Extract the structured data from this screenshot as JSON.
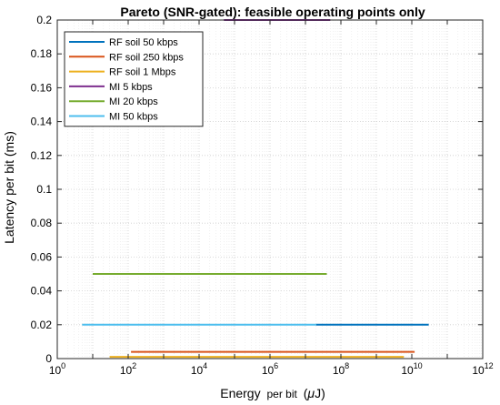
{
  "chart_data": {
    "type": "line",
    "title": "Pareto (SNR-gated): feasible operating points only",
    "xlabel_main": "Energy",
    "xlabel_sub": "per bit",
    "xlabel_unit_open": "(",
    "xlabel_unit_mu": "μ",
    "xlabel_unit_rest": "J)",
    "ylabel": "Latency per bit (ms)",
    "x_scale": "log",
    "xlim": [
      1,
      1000000000000
    ],
    "ylim": [
      0,
      0.2
    ],
    "grid": true,
    "legend_position": "top-left",
    "x_ticks": [
      {
        "base": "10",
        "exp": "0",
        "value": 1
      },
      {
        "base": "10",
        "exp": "2",
        "value": 100
      },
      {
        "base": "10",
        "exp": "4",
        "value": 10000
      },
      {
        "base": "10",
        "exp": "6",
        "value": 1000000
      },
      {
        "base": "10",
        "exp": "8",
        "value": 100000000
      },
      {
        "base": "10",
        "exp": "10",
        "value": 10000000000
      },
      {
        "base": "10",
        "exp": "12",
        "value": 1000000000000
      }
    ],
    "y_ticks": [
      "0",
      "0.02",
      "0.04",
      "0.06",
      "0.08",
      "0.1",
      "0.12",
      "0.14",
      "0.16",
      "0.18",
      "0.2"
    ],
    "series": [
      {
        "name": "RF soil 50 kbps",
        "color": "#0072BD",
        "x": [
          20000000,
          30000000000
        ],
        "y": [
          0.02,
          0.02
        ]
      },
      {
        "name": "RF soil 250 kbps",
        "color": "#D95319",
        "x": [
          120,
          12000000000
        ],
        "y": [
          0.004,
          0.004
        ]
      },
      {
        "name": "RF soil 1 Mbps",
        "color": "#EDB120",
        "x": [
          30,
          6000000000
        ],
        "y": [
          0.001,
          0.001
        ]
      },
      {
        "name": "MI 5 kbps",
        "color": "#7E2F8E",
        "x": [
          50000,
          50000000
        ],
        "y": [
          0.2,
          0.2
        ]
      },
      {
        "name": "MI 20 kbps",
        "color": "#77AC30",
        "x": [
          10,
          40000000
        ],
        "y": [
          0.05,
          0.05
        ]
      },
      {
        "name": "MI 50 kbps",
        "color": "#4DBEEE",
        "x": [
          5,
          20000000
        ],
        "y": [
          0.02,
          0.02
        ]
      }
    ]
  }
}
